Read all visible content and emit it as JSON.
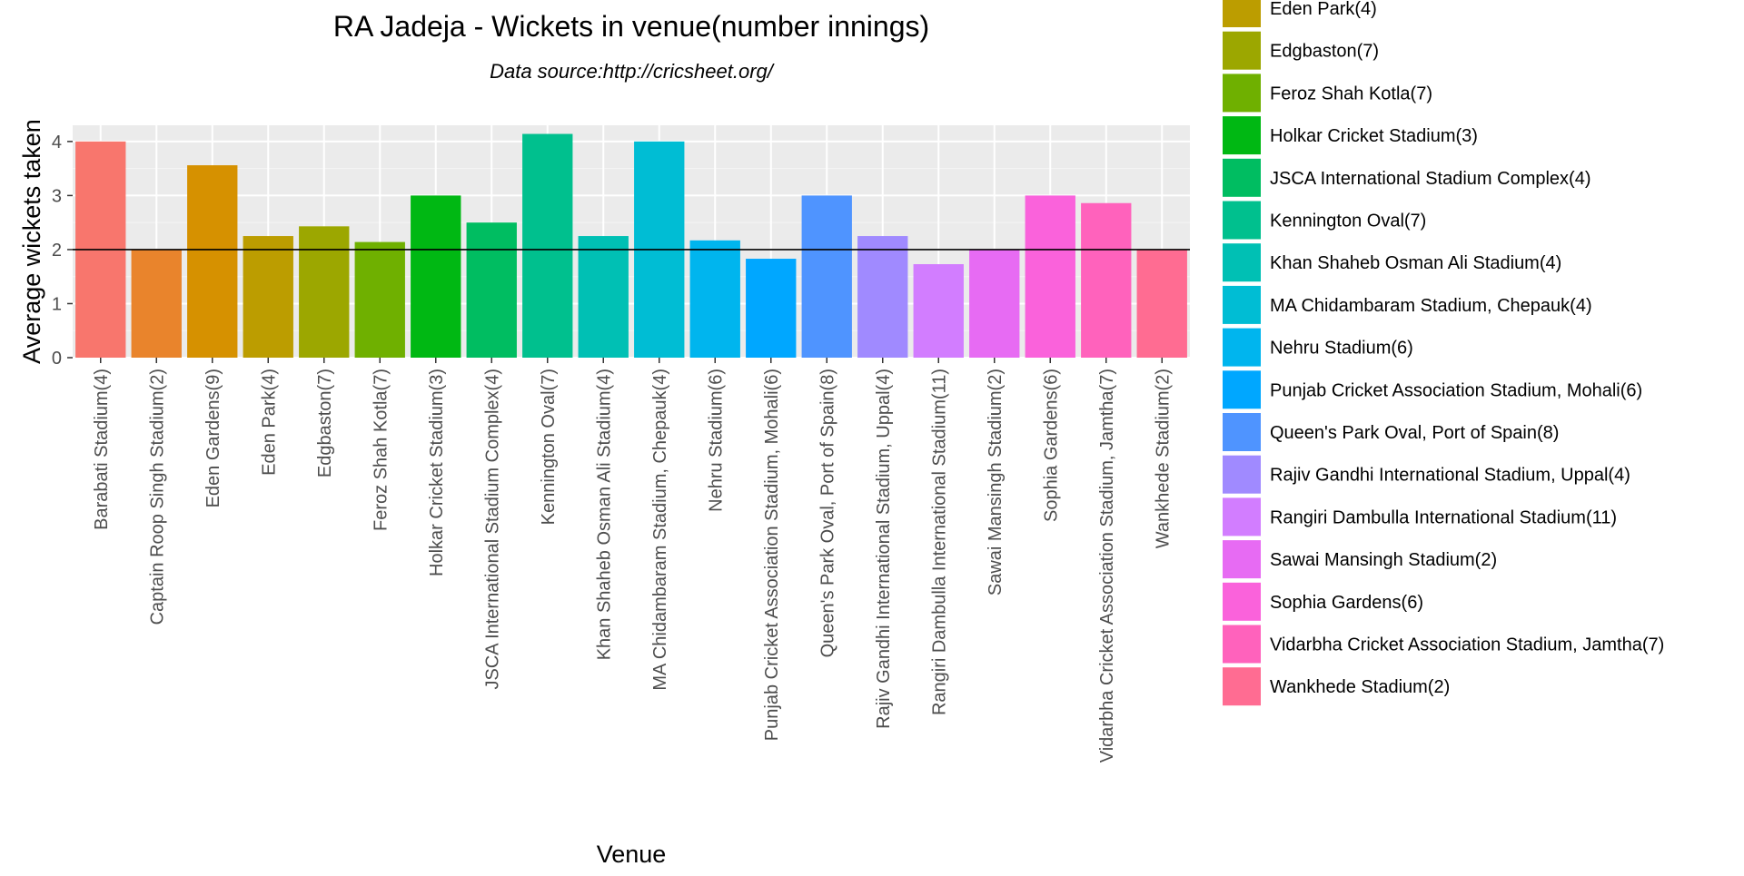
{
  "chart_data": {
    "type": "bar",
    "title": "RA Jadeja - Wickets in venue(number innings)",
    "subtitle": "Data source:http://cricsheet.org/",
    "xlabel": "Venue",
    "ylabel": "Average wickets taken",
    "ylim": [
      0,
      4.3
    ],
    "yticks": [
      "0",
      "1",
      "2",
      "3",
      "4"
    ],
    "reference_line": 2,
    "grid": true,
    "legend_position": "right",
    "categories": [
      "Barabati Stadium(4)",
      "Captain Roop Singh Stadium(2)",
      "Eden Gardens(9)",
      "Eden Park(4)",
      "Edgbaston(7)",
      "Feroz Shah Kotla(7)",
      "Holkar Cricket Stadium(3)",
      "JSCA International Stadium Complex(4)",
      "Kennington Oval(7)",
      "Khan Shaheb Osman Ali Stadium(4)",
      "MA Chidambaram Stadium, Chepauk(4)",
      "Nehru Stadium(6)",
      "Punjab Cricket Association Stadium, Mohali(6)",
      "Queen's Park Oval, Port of Spain(8)",
      "Rajiv Gandhi International Stadium, Uppal(4)",
      "Rangiri Dambulla International Stadium(11)",
      "Sawai Mansingh Stadium(2)",
      "Sophia Gardens(6)",
      "Vidarbha Cricket Association Stadium, Jamtha(7)",
      "Wankhede Stadium(2)"
    ],
    "values": [
      4.0,
      2.0,
      3.56,
      2.25,
      2.43,
      2.14,
      3.0,
      2.5,
      4.14,
      2.25,
      4.0,
      2.17,
      1.83,
      3.0,
      2.25,
      1.73,
      2.0,
      3.0,
      2.86,
      2.0
    ],
    "colors": [
      "#F8766D",
      "#E9842C",
      "#D69100",
      "#BC9D00",
      "#9CA700",
      "#6FB000",
      "#00B813",
      "#00BD61",
      "#00C08E",
      "#00C0B4",
      "#00BDD4",
      "#00B5EE",
      "#00A7FF",
      "#4F94FF",
      "#A08AFF",
      "#D27DFF",
      "#E76BF3",
      "#FA62DB",
      "#FF62BC",
      "#FF6C92"
    ]
  }
}
